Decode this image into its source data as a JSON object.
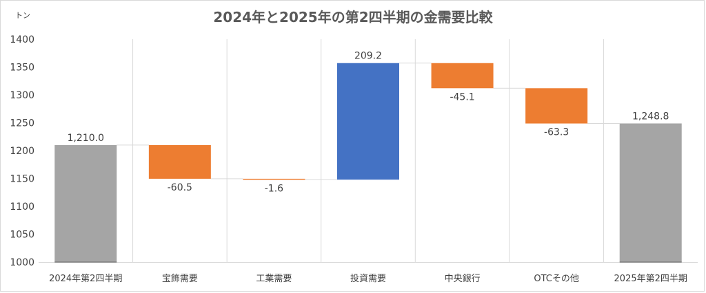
{
  "chart_data": {
    "type": "waterfall",
    "title": "2024年と2025年の第2四半期の金需要比較",
    "ylabel": "トン",
    "ylim": [
      1000,
      1400
    ],
    "yticks": [
      1000,
      1050,
      1100,
      1150,
      1200,
      1250,
      1300,
      1350,
      1400
    ],
    "grid": "vertical category separators",
    "categories": [
      "2024年第2四半期",
      "宝飾需要",
      "工業需要",
      "投資需要",
      "中央銀行",
      "OTCその他",
      "2025年第2四半期"
    ],
    "values": [
      1210.0,
      -60.5,
      -1.6,
      209.2,
      -45.1,
      -63.3,
      1248.8
    ],
    "kinds": [
      "total",
      "change",
      "change",
      "change",
      "change",
      "change",
      "total"
    ],
    "data_labels": [
      "1,210.0",
      "-60.5",
      "-1.6",
      "209.2",
      "-45.1",
      "-63.3",
      "1,248.8"
    ],
    "colors": {
      "total": "#a5a5a5",
      "increase": "#4472c4",
      "decrease": "#ed7d31",
      "connector": "#d9d9d9",
      "grid": "#d9d9d9",
      "axis": "#d9d9d9",
      "text": "#404040",
      "title": "#595959"
    }
  }
}
